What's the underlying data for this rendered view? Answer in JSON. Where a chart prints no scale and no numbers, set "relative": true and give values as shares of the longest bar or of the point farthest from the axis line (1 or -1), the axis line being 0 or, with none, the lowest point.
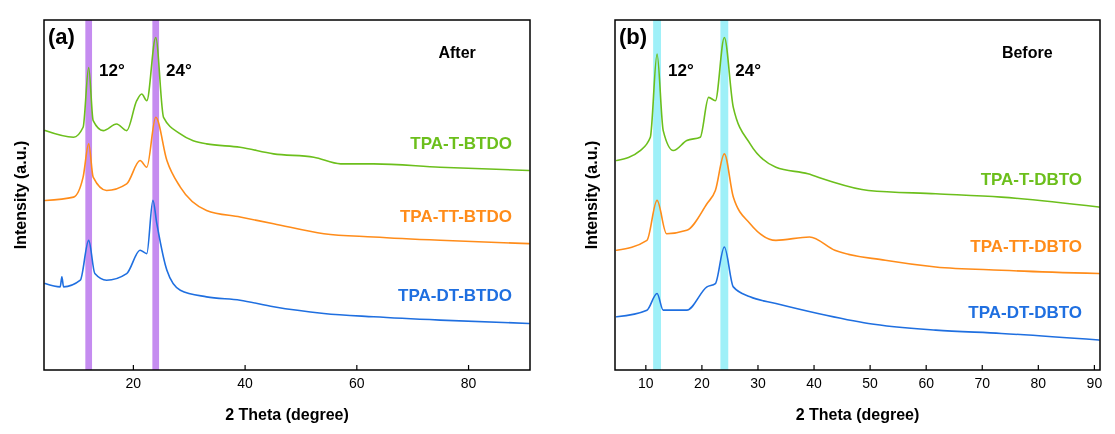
{
  "chart_data": [
    {
      "type": "line",
      "relative": true,
      "xlabel": "2 Theta (degree)",
      "ylabel": "Intensity (a.u.)",
      "xlim": [
        4,
        91
      ],
      "xticks": [
        20,
        40,
        60,
        80
      ],
      "tick_labels": "x",
      "annotations": [
        "(a)",
        "After"
      ],
      "bands": [
        {
          "axis": "x",
          "from": 11.4,
          "to": 12.6,
          "label": "12°",
          "color": "#c58cf0"
        },
        {
          "axis": "x",
          "from": 23.4,
          "to": 24.6,
          "label": "24°",
          "color": "#c58cf0"
        }
      ],
      "series": [
        {
          "name": "TPA-T-BTDO",
          "color": "#6cbf1c",
          "x": [
            4.2,
            9.3,
            11.0,
            12.0,
            12.8,
            14.6,
            17.0,
            18.8,
            20.6,
            21.5,
            22.4,
            24.0,
            25.4,
            28.4,
            33.1,
            39.1,
            45.1,
            52.3,
            57.1,
            63.0,
            74.9,
            90.8
          ],
          "values": [
            0.72,
            0.7,
            0.73,
            0.91,
            0.75,
            0.72,
            0.74,
            0.72,
            0.81,
            0.83,
            0.81,
            1.0,
            0.76,
            0.71,
            0.68,
            0.67,
            0.65,
            0.64,
            0.62,
            0.62,
            0.61,
            0.6
          ]
        },
        {
          "name": "TPA-TT-BTDO",
          "color": "#ff8c1a",
          "x": [
            4.2,
            9.3,
            11.0,
            12.0,
            12.8,
            15.2,
            18.8,
            21.2,
            22.4,
            24.0,
            26.0,
            28.4,
            33.1,
            39.1,
            45.1,
            54.1,
            63.0,
            74.9,
            90.8
          ],
          "values": [
            0.51,
            0.52,
            0.58,
            0.68,
            0.58,
            0.54,
            0.56,
            0.63,
            0.61,
            0.76,
            0.63,
            0.55,
            0.48,
            0.46,
            0.44,
            0.41,
            0.4,
            0.39,
            0.38
          ]
        },
        {
          "name": "TPA-DT-BTDO",
          "color": "#1f6fe0",
          "x": [
            4.2,
            6.9,
            7.2,
            7.5,
            10.5,
            12.0,
            13.1,
            15.2,
            18.8,
            21.2,
            22.4,
            23.5,
            24.2,
            26.0,
            28.4,
            33.1,
            39.1,
            45.1,
            54.1,
            63.0,
            74.9,
            90.8
          ],
          "values": [
            0.26,
            0.25,
            0.28,
            0.25,
            0.27,
            0.39,
            0.29,
            0.27,
            0.29,
            0.36,
            0.35,
            0.51,
            0.44,
            0.3,
            0.24,
            0.22,
            0.21,
            0.19,
            0.17,
            0.16,
            0.15,
            0.14
          ]
        }
      ]
    },
    {
      "type": "line",
      "relative": true,
      "xlabel": "2 Theta (degree)",
      "ylabel": "Intensity (a.u.)",
      "xlim": [
        4.5,
        91
      ],
      "xticks": [
        10,
        20,
        30,
        40,
        50,
        60,
        70,
        80,
        90
      ],
      "tick_labels": "x",
      "annotations": [
        "(b)",
        "Before"
      ],
      "bands": [
        {
          "axis": "x",
          "from": 11.3,
          "to": 12.7,
          "label": "12°",
          "color": "#9ff0f8"
        },
        {
          "axis": "x",
          "from": 23.3,
          "to": 24.7,
          "label": "24°",
          "color": "#9ff0f8"
        }
      ],
      "series": [
        {
          "name": "TPA-T-DBTO",
          "color": "#6cbf1c",
          "x": [
            4.8,
            9.0,
            10.8,
            12.0,
            13.1,
            14.9,
            17.3,
            19.7,
            21.2,
            22.4,
            24.0,
            25.6,
            28.6,
            33.2,
            38.9,
            42.5,
            49.7,
            61.7,
            73.4,
            90.8
          ],
          "values": [
            0.63,
            0.66,
            0.7,
            0.95,
            0.72,
            0.66,
            0.69,
            0.7,
            0.82,
            0.81,
            1.0,
            0.79,
            0.68,
            0.61,
            0.59,
            0.57,
            0.54,
            0.53,
            0.52,
            0.49
          ]
        },
        {
          "name": "TPA-TT-DBTO",
          "color": "#ff8c1a",
          "x": [
            4.8,
            10.2,
            12.0,
            13.7,
            17.3,
            20.9,
            22.4,
            24.0,
            25.6,
            28.6,
            33.2,
            39.2,
            43.7,
            52.7,
            61.7,
            73.4,
            90.8
          ],
          "values": [
            0.36,
            0.39,
            0.51,
            0.41,
            0.42,
            0.5,
            0.54,
            0.65,
            0.52,
            0.44,
            0.39,
            0.4,
            0.36,
            0.33,
            0.31,
            0.3,
            0.29
          ]
        },
        {
          "name": "TPA-DT-DBTO",
          "color": "#1f6fe0",
          "x": [
            4.8,
            10.2,
            12.0,
            13.1,
            17.3,
            20.9,
            22.4,
            24.0,
            25.6,
            28.6,
            33.2,
            40.7,
            49.7,
            61.7,
            73.4,
            90.8
          ],
          "values": [
            0.16,
            0.18,
            0.23,
            0.18,
            0.18,
            0.25,
            0.26,
            0.37,
            0.25,
            0.22,
            0.2,
            0.17,
            0.14,
            0.12,
            0.11,
            0.09
          ]
        }
      ]
    }
  ]
}
